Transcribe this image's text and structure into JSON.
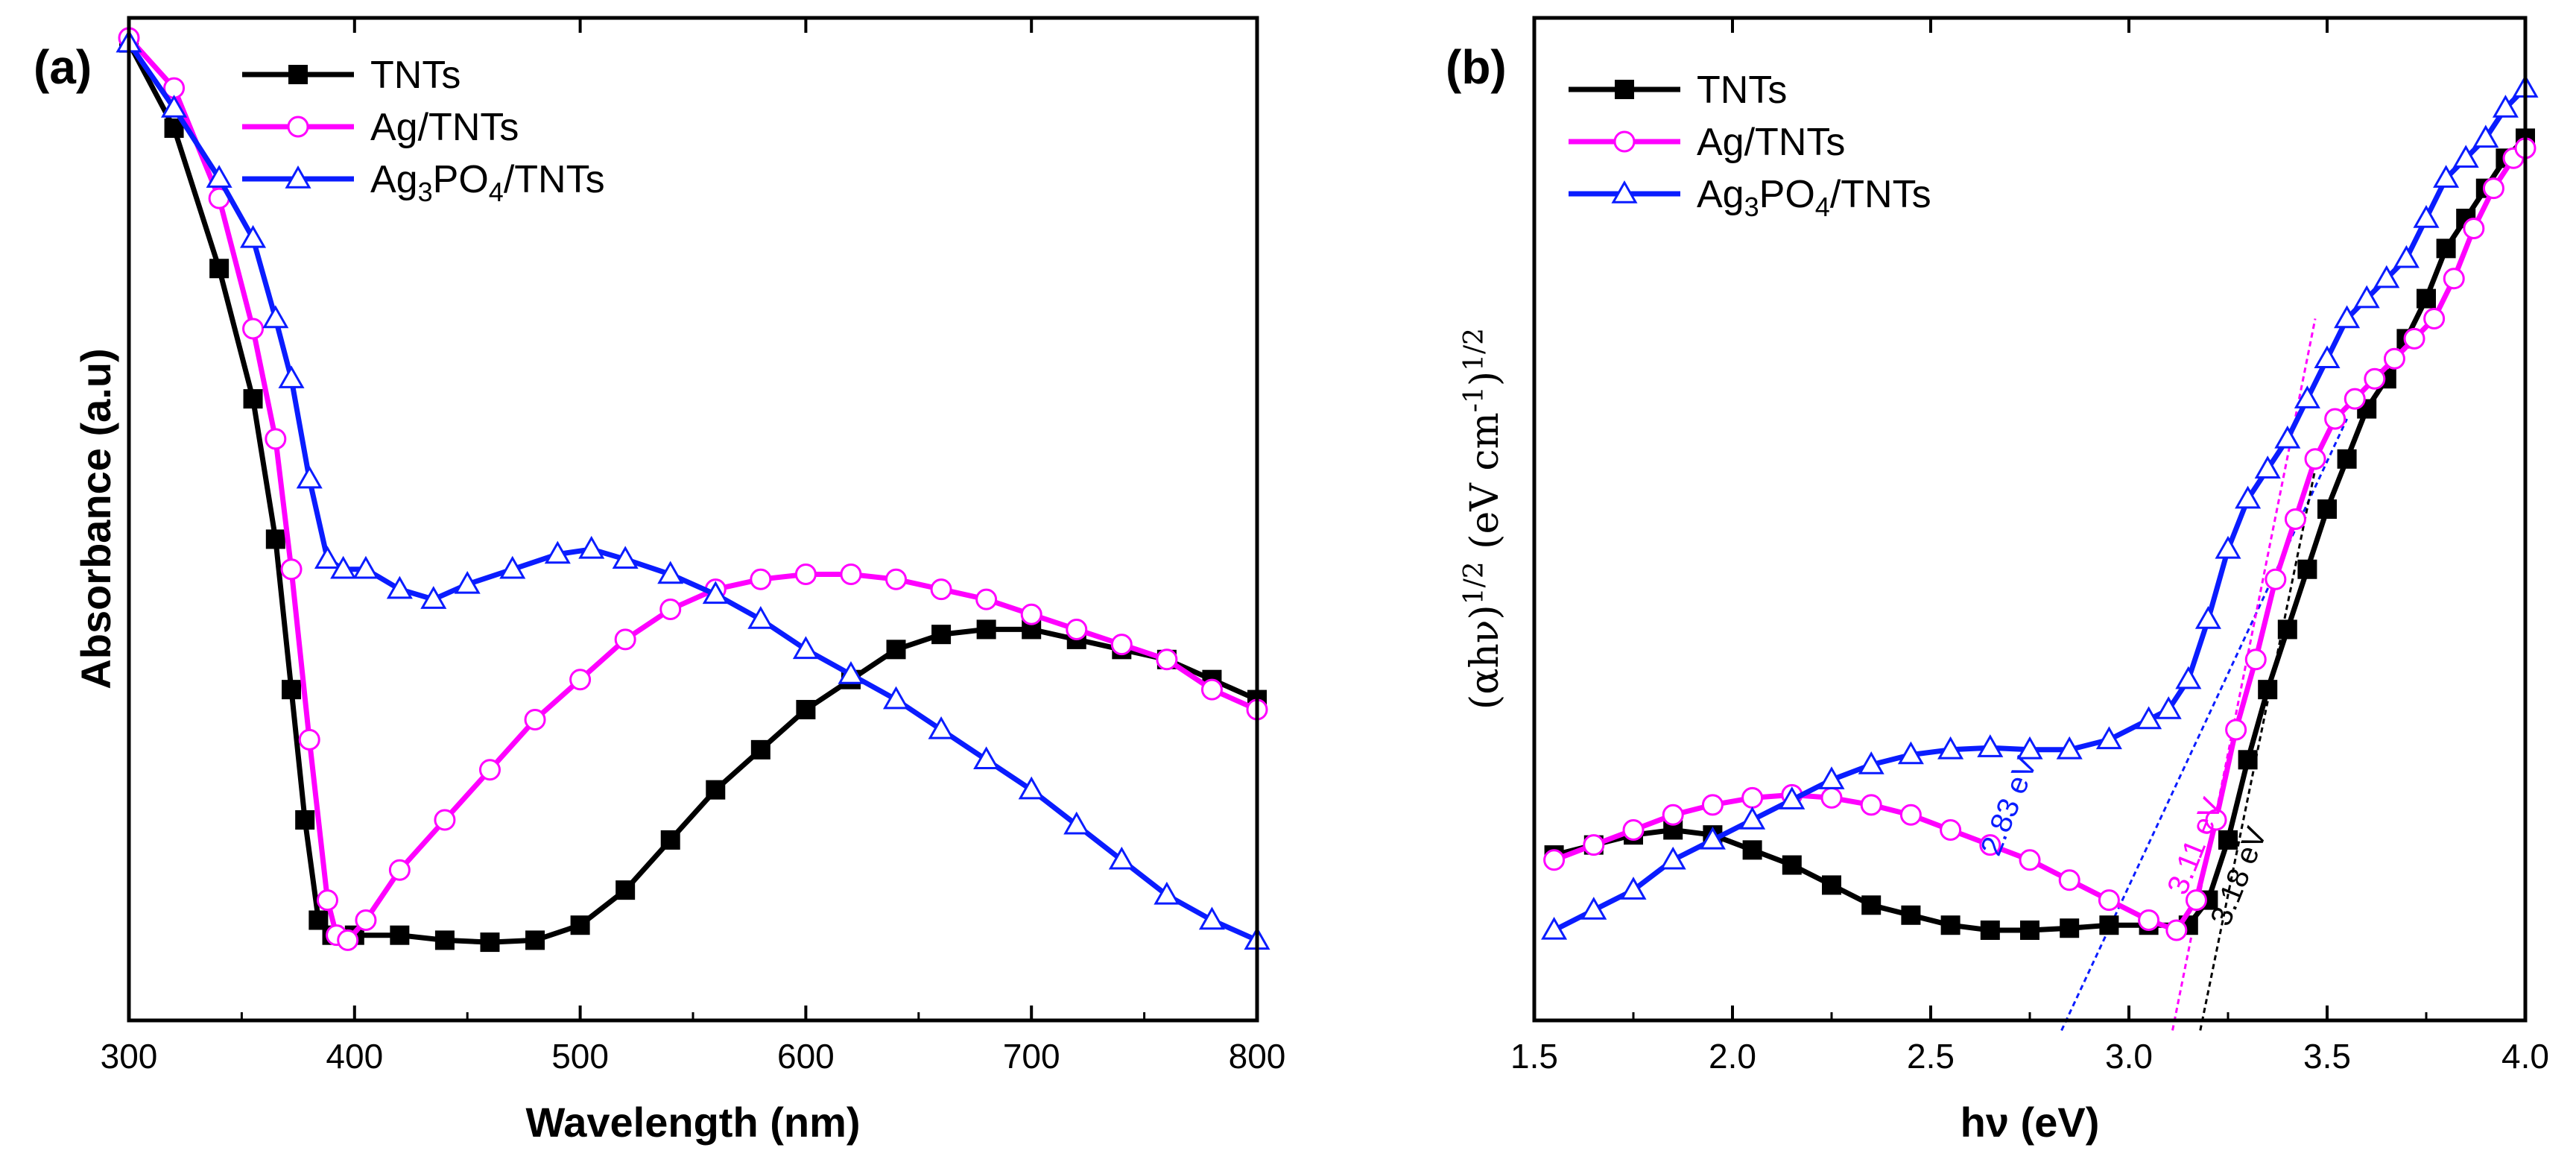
{
  "chart_data": [
    {
      "panel_label": "(a)",
      "type": "line",
      "xlabel": "Wavelength (nm)",
      "ylabel": "Absorbance (a.u)",
      "xlim": [
        300,
        800
      ],
      "ylim": [
        0,
        1
      ],
      "xticks": [
        "300",
        "400",
        "500",
        "600",
        "700",
        "800"
      ],
      "legend_position": "top-left",
      "series": [
        {
          "name": "TNTs",
          "color": "#000000",
          "marker": "square",
          "x": [
            300,
            320,
            340,
            355,
            365,
            372,
            378,
            384,
            390,
            400,
            420,
            440,
            460,
            480,
            500,
            520,
            540,
            560,
            580,
            600,
            620,
            640,
            660,
            680,
            700,
            720,
            740,
            760,
            780,
            800
          ],
          "y": [
            0.975,
            0.89,
            0.75,
            0.62,
            0.48,
            0.33,
            0.2,
            0.1,
            0.085,
            0.085,
            0.085,
            0.08,
            0.078,
            0.08,
            0.095,
            0.13,
            0.18,
            0.23,
            0.27,
            0.31,
            0.34,
            0.37,
            0.385,
            0.39,
            0.39,
            0.38,
            0.37,
            0.36,
            0.34,
            0.32
          ]
        },
        {
          "name": "Ag/TNTs",
          "color": "#ff00ff",
          "marker": "open-circle",
          "x": [
            300,
            320,
            340,
            355,
            365,
            372,
            380,
            388,
            392,
            397,
            405,
            420,
            440,
            460,
            480,
            500,
            520,
            540,
            560,
            580,
            600,
            620,
            640,
            660,
            680,
            700,
            720,
            740,
            760,
            780,
            800
          ],
          "y": [
            0.98,
            0.93,
            0.82,
            0.69,
            0.58,
            0.45,
            0.28,
            0.12,
            0.085,
            0.08,
            0.1,
            0.15,
            0.2,
            0.25,
            0.3,
            0.34,
            0.38,
            0.41,
            0.43,
            0.44,
            0.445,
            0.445,
            0.44,
            0.43,
            0.42,
            0.405,
            0.39,
            0.375,
            0.36,
            0.33,
            0.31
          ]
        },
        {
          "name": "Ag3PO4/TNTs",
          "color": "#0a1cff",
          "marker": "open-triangle",
          "x": [
            300,
            320,
            340,
            355,
            365,
            372,
            380,
            388,
            395,
            405,
            420,
            435,
            450,
            470,
            490,
            505,
            520,
            540,
            560,
            580,
            600,
            620,
            640,
            660,
            680,
            700,
            720,
            740,
            760,
            780,
            800
          ],
          "y": [
            0.975,
            0.91,
            0.84,
            0.78,
            0.7,
            0.64,
            0.54,
            0.46,
            0.45,
            0.45,
            0.43,
            0.42,
            0.435,
            0.45,
            0.465,
            0.47,
            0.46,
            0.445,
            0.425,
            0.4,
            0.37,
            0.345,
            0.32,
            0.29,
            0.26,
            0.23,
            0.195,
            0.16,
            0.125,
            0.1,
            0.08
          ]
        }
      ]
    },
    {
      "panel_label": "(b)",
      "type": "line",
      "xlabel": "hν (eV)",
      "ylabel_main": "(αhν)",
      "ylabel_exp": "1/2",
      "ylabel_unit": " (eV cm",
      "ylabel_unit_exp": "-1",
      "ylabel_close": ")",
      "ylabel_close_exp": "1/2",
      "xlim": [
        1.5,
        4.0
      ],
      "ylim": [
        0,
        1
      ],
      "xticks": [
        "1.5",
        "2.0",
        "2.5",
        "3.0",
        "3.5",
        "4.0"
      ],
      "legend_position": "top-left",
      "series": [
        {
          "name": "TNTs",
          "color": "#000000",
          "marker": "square",
          "x": [
            1.55,
            1.65,
            1.75,
            1.85,
            1.95,
            2.05,
            2.15,
            2.25,
            2.35,
            2.45,
            2.55,
            2.65,
            2.75,
            2.85,
            2.95,
            3.05,
            3.15,
            3.2,
            3.25,
            3.3,
            3.35,
            3.4,
            3.45,
            3.5,
            3.55,
            3.6,
            3.65,
            3.7,
            3.75,
            3.8,
            3.85,
            3.9,
            3.95,
            4.0
          ],
          "y": [
            0.165,
            0.175,
            0.185,
            0.19,
            0.185,
            0.17,
            0.155,
            0.135,
            0.115,
            0.105,
            0.095,
            0.09,
            0.09,
            0.092,
            0.095,
            0.095,
            0.095,
            0.12,
            0.18,
            0.26,
            0.33,
            0.39,
            0.45,
            0.51,
            0.56,
            0.61,
            0.64,
            0.68,
            0.72,
            0.77,
            0.8,
            0.83,
            0.86,
            0.88
          ]
        },
        {
          "name": "Ag/TNTs",
          "color": "#ff00ff",
          "marker": "open-circle",
          "x": [
            1.55,
            1.65,
            1.75,
            1.85,
            1.95,
            2.05,
            2.15,
            2.25,
            2.35,
            2.45,
            2.55,
            2.65,
            2.75,
            2.85,
            2.95,
            3.05,
            3.12,
            3.17,
            3.22,
            3.27,
            3.32,
            3.37,
            3.42,
            3.47,
            3.52,
            3.57,
            3.62,
            3.67,
            3.72,
            3.77,
            3.82,
            3.87,
            3.92,
            3.97,
            4.0
          ],
          "y": [
            0.16,
            0.175,
            0.19,
            0.205,
            0.215,
            0.222,
            0.225,
            0.222,
            0.215,
            0.205,
            0.19,
            0.175,
            0.16,
            0.14,
            0.12,
            0.1,
            0.09,
            0.12,
            0.2,
            0.29,
            0.36,
            0.44,
            0.5,
            0.56,
            0.6,
            0.62,
            0.64,
            0.66,
            0.68,
            0.7,
            0.74,
            0.79,
            0.83,
            0.86,
            0.87
          ]
        },
        {
          "name": "Ag3PO4/TNTs",
          "color": "#0a1cff",
          "marker": "open-triangle",
          "x": [
            1.55,
            1.65,
            1.75,
            1.85,
            1.95,
            2.05,
            2.15,
            2.25,
            2.35,
            2.45,
            2.55,
            2.65,
            2.75,
            2.85,
            2.95,
            3.05,
            3.1,
            3.15,
            3.2,
            3.25,
            3.3,
            3.35,
            3.4,
            3.45,
            3.5,
            3.55,
            3.6,
            3.65,
            3.7,
            3.75,
            3.8,
            3.85,
            3.9,
            3.95,
            4.0
          ],
          "y": [
            0.09,
            0.11,
            0.13,
            0.16,
            0.18,
            0.2,
            0.22,
            0.24,
            0.255,
            0.265,
            0.27,
            0.272,
            0.27,
            0.27,
            0.28,
            0.3,
            0.31,
            0.34,
            0.4,
            0.47,
            0.52,
            0.55,
            0.58,
            0.62,
            0.66,
            0.7,
            0.72,
            0.74,
            0.76,
            0.8,
            0.84,
            0.86,
            0.88,
            0.91,
            0.93
          ]
        }
      ],
      "annotations": [
        {
          "text": "2.83 eV",
          "color": "#0a1cff",
          "x": 2.72,
          "y": 0.21
        },
        {
          "text": "3.11 eV",
          "color": "#ff00ff",
          "x": 3.19,
          "y": 0.17
        },
        {
          "text": "3.18 eV",
          "color": "#000000",
          "x": 3.3,
          "y": 0.14
        }
      ],
      "tangent_lines": [
        {
          "color": "#0a1cff",
          "x": [
            2.83,
            3.55
          ],
          "y": [
            -0.01,
            0.6
          ]
        },
        {
          "color": "#ff00ff",
          "x": [
            3.11,
            3.47
          ],
          "y": [
            -0.01,
            0.7
          ]
        },
        {
          "color": "#000000",
          "x": [
            3.18,
            3.47
          ],
          "y": [
            -0.01,
            0.55
          ]
        }
      ]
    }
  ]
}
